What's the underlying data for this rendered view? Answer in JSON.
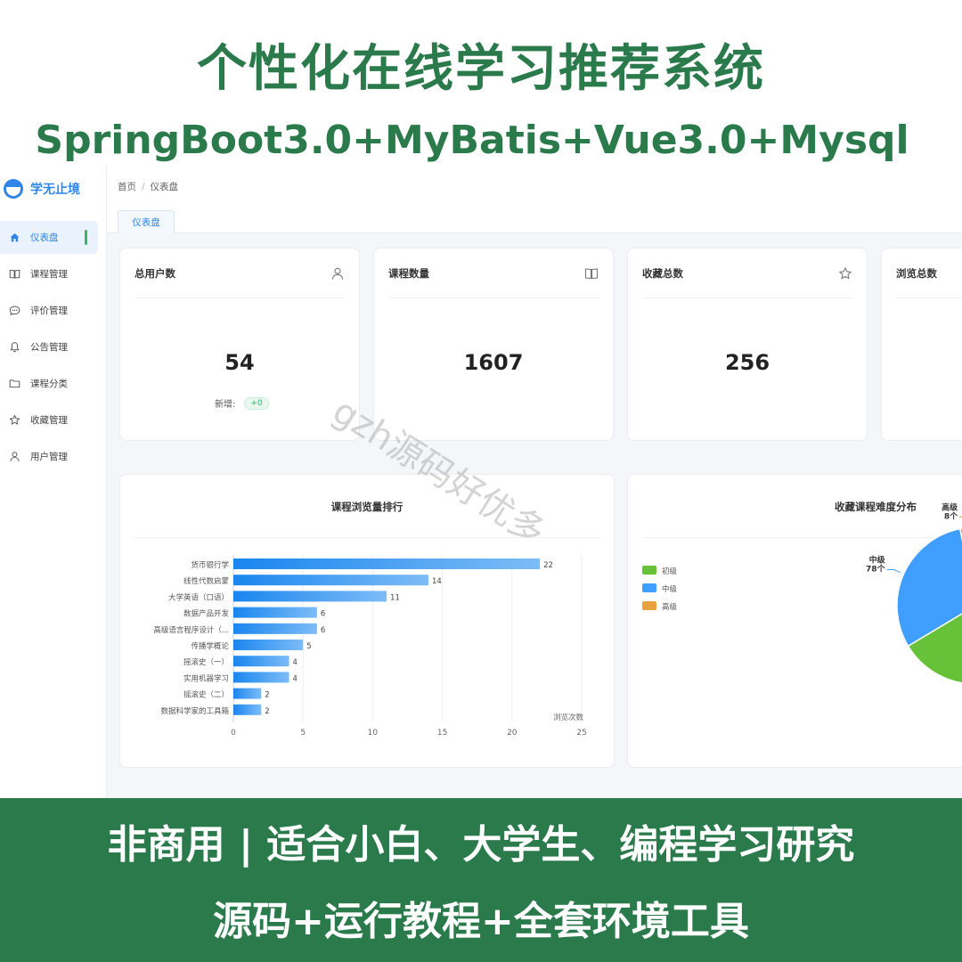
{
  "promo": {
    "title": "个性化在线学习推荐系统",
    "stack": "SpringBoot3.0+MyBatis+Vue3.0+Mysql",
    "footer_line1": "非商用 | 适合小白、大学生、编程学习研究",
    "footer_line2": "源码+运行教程+全套环境工具",
    "watermark": "gzh源码好优多",
    "colors": {
      "green": "#2b7a4b",
      "accent": "#2f86e8"
    }
  },
  "app": {
    "logo_text": "学无止境",
    "sidebar": {
      "items": [
        {
          "label": "仪表盘",
          "icon": "home-icon"
        },
        {
          "label": "课程管理",
          "icon": "book-icon"
        },
        {
          "label": "评价管理",
          "icon": "comment-icon"
        },
        {
          "label": "公告管理",
          "icon": "bell-icon"
        },
        {
          "label": "课程分类",
          "icon": "folder-icon"
        },
        {
          "label": "收藏管理",
          "icon": "star-icon"
        },
        {
          "label": "用户管理",
          "icon": "user-icon"
        }
      ]
    },
    "breadcrumb": {
      "home": "首页",
      "sep": "/",
      "current": "仪表盘"
    },
    "tabs": [
      {
        "label": "仪表盘"
      }
    ],
    "stats": [
      {
        "title": "总用户数",
        "value": "54",
        "new_label": "新增:",
        "new_value": "+0",
        "icon": "user-icon"
      },
      {
        "title": "课程数量",
        "value": "1607",
        "icon": "book-icon"
      },
      {
        "title": "收藏总数",
        "value": "256",
        "icon": "star-icon"
      },
      {
        "title": "浏览总数",
        "icon": "eye-icon"
      }
    ]
  },
  "chart_data": [
    {
      "type": "bar",
      "orientation": "horizontal",
      "title": "课程浏览量排行",
      "categories": [
        "货币银行学",
        "线性代数启蒙",
        "大学英语（口语）",
        "数据产品开发",
        "高级语言程序设计（...",
        "传播学概论",
        "摇滚史（一）",
        "实用机器学习",
        "摇滚史（二）",
        "数据科学家的工具箱"
      ],
      "values": [
        22,
        14,
        11,
        6,
        6,
        5,
        4,
        4,
        2,
        2
      ],
      "xlabel": "浏览次数",
      "xlim": [
        0,
        25
      ],
      "xticks": [
        0,
        5,
        10,
        15,
        20,
        25
      ],
      "grid": true,
      "color": "#1f8ff0"
    },
    {
      "type": "pie",
      "title": "收藏课程难度分布",
      "legend": [
        "初级",
        "中级",
        "高级"
      ],
      "legend_position": "left",
      "slices": [
        {
          "name": "初级",
          "value": 170,
          "color": "#67c23a",
          "label": ""
        },
        {
          "name": "中级",
          "value": 78,
          "color": "#409eff",
          "label": "中级\n78个"
        },
        {
          "name": "高级",
          "value": 8,
          "color": "#e6a23c",
          "label": "高级\n8个"
        }
      ]
    }
  ]
}
